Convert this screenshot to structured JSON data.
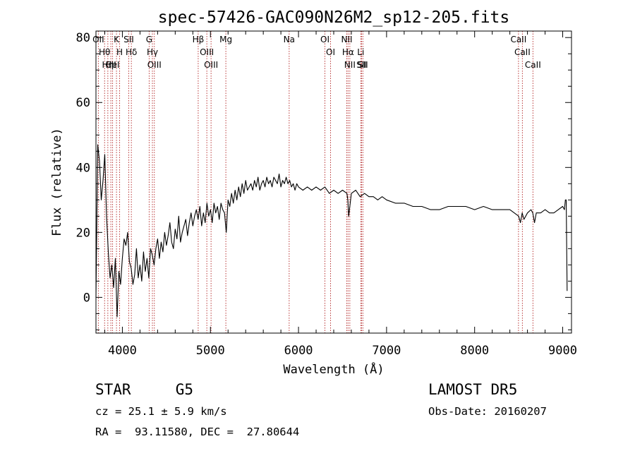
{
  "chart_data": {
    "type": "line",
    "title": "spec-57426-GAC090N26M2_sp12-205.fits",
    "xlabel": "Wavelength (Å)",
    "ylabel": "Flux (relative)",
    "xlim": [
      3700,
      9100
    ],
    "ylim": [
      -11,
      82
    ],
    "xticks": [
      4000,
      5000,
      6000,
      7000,
      8000,
      9000
    ],
    "yticks": [
      0,
      20,
      40,
      60,
      80
    ],
    "grid": false,
    "series": [
      {
        "x": [
          3700,
          3720,
          3740,
          3760,
          3780,
          3800,
          3820,
          3840,
          3860,
          3880,
          3900,
          3920,
          3940,
          3960,
          3980,
          4000,
          4020,
          4040,
          4060,
          4080,
          4100,
          4120,
          4140,
          4160,
          4180,
          4200,
          4220,
          4240,
          4260,
          4280,
          4300,
          4320,
          4340,
          4360,
          4380,
          4400,
          4420,
          4440,
          4460,
          4480,
          4500,
          4520,
          4540,
          4560,
          4580,
          4600,
          4620,
          4640,
          4660,
          4680,
          4700,
          4720,
          4740,
          4760,
          4780,
          4800,
          4820,
          4840,
          4860,
          4880,
          4900,
          4920,
          4940,
          4960,
          4980,
          5000,
          5020,
          5040,
          5060,
          5080,
          5100,
          5120,
          5140,
          5160,
          5180,
          5200,
          5220,
          5240,
          5260,
          5280,
          5300,
          5320,
          5340,
          5360,
          5380,
          5400,
          5420,
          5440,
          5460,
          5480,
          5500,
          5520,
          5540,
          5560,
          5580,
          5600,
          5620,
          5640,
          5660,
          5680,
          5700,
          5720,
          5740,
          5760,
          5780,
          5800,
          5820,
          5840,
          5860,
          5880,
          5900,
          5920,
          5940,
          5960,
          5980,
          6000,
          6050,
          6100,
          6150,
          6200,
          6250,
          6300,
          6350,
          6400,
          6450,
          6500,
          6550,
          6560,
          6570,
          6600,
          6650,
          6700,
          6750,
          6800,
          6850,
          6900,
          6950,
          7000,
          7100,
          7200,
          7300,
          7400,
          7500,
          7600,
          7700,
          7800,
          7900,
          8000,
          8100,
          8200,
          8300,
          8400,
          8450,
          8500,
          8520,
          8540,
          8560,
          8600,
          8640,
          8660,
          8680,
          8700,
          8750,
          8800,
          8850,
          8900,
          8950,
          9000,
          9020,
          9030,
          9040,
          9050
        ],
        "y": [
          0,
          47,
          42,
          30,
          36,
          44,
          25,
          14,
          6,
          10,
          3,
          12,
          -6,
          8,
          4,
          12,
          18,
          16,
          20,
          11,
          9,
          4,
          7,
          15,
          6,
          10,
          5,
          14,
          8,
          12,
          6,
          15,
          13,
          10,
          15,
          18,
          12,
          17,
          14,
          20,
          16,
          19,
          23,
          17,
          15,
          21,
          18,
          25,
          17,
          20,
          22,
          24,
          19,
          23,
          26,
          22,
          25,
          27,
          24,
          28,
          22,
          26,
          23,
          29,
          25,
          27,
          23,
          29,
          26,
          28,
          24,
          29,
          27,
          26,
          20,
          30,
          28,
          32,
          29,
          33,
          30,
          34,
          31,
          35,
          32,
          36,
          33,
          34,
          35,
          33,
          36,
          34,
          37,
          33,
          35,
          36,
          34,
          37,
          35,
          36,
          34,
          37,
          36,
          35,
          38,
          34,
          36,
          35,
          37,
          35,
          36,
          34,
          35,
          33,
          35,
          34,
          33,
          34,
          33,
          34,
          33,
          34,
          32,
          33,
          32,
          33,
          32,
          30,
          25,
          32,
          33,
          31,
          32,
          31,
          31,
          30,
          31,
          30,
          29,
          29,
          28,
          28,
          27,
          27,
          28,
          28,
          28,
          27,
          28,
          27,
          27,
          27,
          26,
          25,
          23,
          26,
          24,
          26,
          27,
          26,
          23,
          26,
          26,
          27,
          26,
          26,
          27,
          28,
          27,
          30,
          30,
          2
        ]
      }
    ],
    "lines": [
      {
        "x": 3727,
        "label": "OII"
      },
      {
        "x": 3798,
        "label": "Hθ"
      },
      {
        "x": 3835,
        "label": "Hη"
      },
      {
        "x": 3869,
        "label": "CII"
      },
      {
        "x": 3889,
        "label": "HeI"
      },
      {
        "x": 3933,
        "label": "K"
      },
      {
        "x": 3969,
        "label": "H"
      },
      {
        "x": 4072,
        "label": "SII"
      },
      {
        "x": 4102,
        "label": "Hδ"
      },
      {
        "x": 4304,
        "label": "G"
      },
      {
        "x": 4341,
        "label": "Hγ"
      },
      {
        "x": 4363,
        "label": "OIII"
      },
      {
        "x": 4861,
        "label": "Hβ"
      },
      {
        "x": 4959,
        "label": "OIII"
      },
      {
        "x": 5007,
        "label": "OIII"
      },
      {
        "x": 5175,
        "label": "Mg"
      },
      {
        "x": 5894,
        "label": "Na"
      },
      {
        "x": 6300,
        "label": "OI"
      },
      {
        "x": 6364,
        "label": "OI"
      },
      {
        "x": 6548,
        "label": "NII"
      },
      {
        "x": 6563,
        "label": "Hα"
      },
      {
        "x": 6583,
        "label": "NII"
      },
      {
        "x": 6707,
        "label": "Li"
      },
      {
        "x": 6716,
        "label": "SII"
      },
      {
        "x": 6731,
        "label": "SII"
      },
      {
        "x": 8498,
        "label": "CaII"
      },
      {
        "x": 8542,
        "label": "CaII"
      },
      {
        "x": 8662,
        "label": "CaII"
      }
    ]
  },
  "info": {
    "object": "STAR     G5",
    "survey": "LAMOST DR5",
    "redshift": "cz = 25.1 ± 5.9 km/s",
    "obs_date": "Obs-Date: 20160207",
    "coords": "RA =  93.11580, DEC =  27.80644"
  }
}
